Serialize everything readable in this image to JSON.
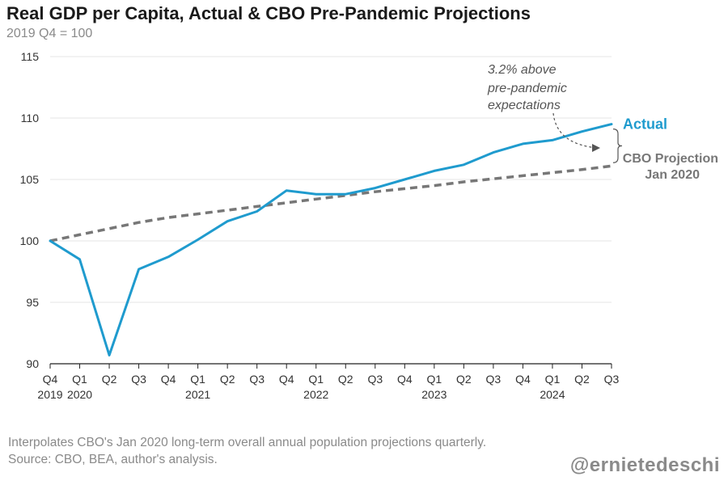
{
  "chart_data": {
    "type": "line",
    "title": "Real GDP per Capita, Actual & CBO Pre-Pandemic Projections",
    "subtitle": "2019 Q4 = 100",
    "ylim": [
      90,
      115
    ],
    "yticks": [
      90,
      95,
      100,
      105,
      110,
      115
    ],
    "grid": true,
    "x_quarter_labels": [
      "Q4",
      "Q1",
      "Q2",
      "Q3",
      "Q4",
      "Q1",
      "Q2",
      "Q3",
      "Q4",
      "Q1",
      "Q2",
      "Q3",
      "Q4",
      "Q1",
      "Q2",
      "Q3",
      "Q4",
      "Q1",
      "Q2",
      "Q3"
    ],
    "x_year_labels": [
      {
        "index": 0,
        "label": "2019"
      },
      {
        "index": 1,
        "label": "2020"
      },
      {
        "index": 5,
        "label": "2021"
      },
      {
        "index": 9,
        "label": "2022"
      },
      {
        "index": 13,
        "label": "2023"
      },
      {
        "index": 17,
        "label": "2024"
      }
    ],
    "series": [
      {
        "name": "Actual",
        "color": "#1f9bce",
        "style": "solid",
        "values": [
          100.0,
          98.5,
          90.7,
          97.7,
          98.7,
          100.1,
          101.6,
          102.4,
          104.1,
          103.8,
          103.8,
          104.3,
          105.0,
          105.7,
          106.2,
          107.2,
          107.9,
          108.2,
          108.9,
          109.5
        ]
      },
      {
        "name": "CBO Projection Jan 2020",
        "label_lines": [
          "CBO Projection",
          "Jan 2020"
        ],
        "color": "#777777",
        "style": "dashed",
        "values": [
          100.0,
          100.5,
          101.0,
          101.5,
          101.9,
          102.2,
          102.5,
          102.8,
          103.1,
          103.4,
          103.7,
          104.0,
          104.25,
          104.5,
          104.8,
          105.05,
          105.3,
          105.55,
          105.8,
          106.1
        ]
      }
    ],
    "annotation": {
      "lines": [
        "3.2% above",
        "pre-pandemic",
        "expectations"
      ]
    }
  },
  "footer": {
    "note": "Interpolates CBO's Jan 2020 long-term overall annual population projections quarterly.",
    "source": "Source: CBO, BEA, author's analysis.",
    "handle": "@ernietedeschi"
  }
}
